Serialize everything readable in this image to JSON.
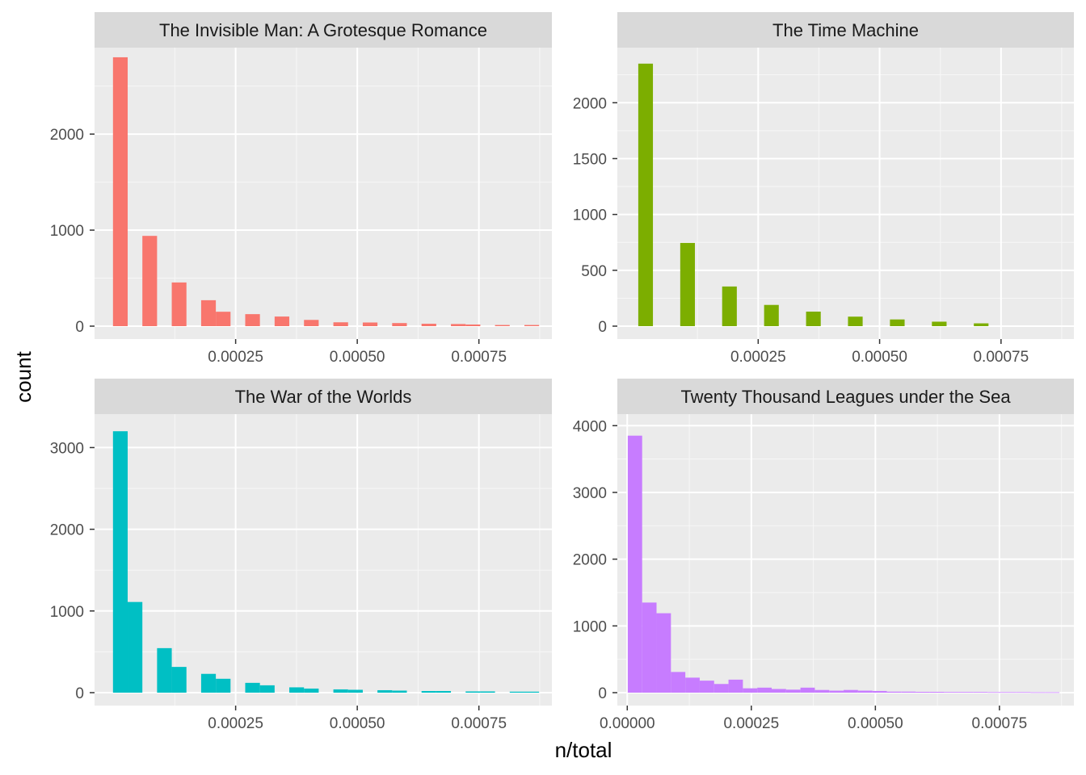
{
  "chart_data": {
    "type": "bar",
    "xlabel": "n/total",
    "ylabel": "count",
    "grid": true,
    "legend": "none",
    "panels": [
      {
        "title": "The Invisible Man: A Grotesque Romance",
        "color": "#F8766D",
        "xlim": [
          -4e-05,
          0.0009
        ],
        "ylim": [
          0,
          2850
        ],
        "xticks": [
          "0.00025",
          "0.00050",
          "0.00075"
        ],
        "xtick_values": [
          0.00025,
          0.0005,
          0.00075
        ],
        "yticks": [
          "0",
          "1000",
          "2000"
        ],
        "ytick_values": [
          0,
          1000,
          2000
        ],
        "bin_width": 3.02e-05,
        "x": [
          1.3e-05,
          7.34e-05,
          0.0001338,
          0.0001942,
          0.0002244,
          0.0002848,
          0.0003452,
          0.0004056,
          0.000466,
          0.0005264,
          0.0005868,
          0.0006472,
          0.0007076,
          0.0007378,
          0.0007982,
          0.0008586
        ],
        "values": [
          2800,
          940,
          455,
          270,
          150,
          125,
          100,
          65,
          40,
          38,
          32,
          25,
          22,
          17,
          12,
          12
        ]
      },
      {
        "title": "The Time Machine",
        "color": "#7CAE00",
        "xlim": [
          -4e-05,
          0.0009
        ],
        "ylim": [
          0,
          2450
        ],
        "xticks": [
          "0.00025",
          "0.00050",
          "0.00075"
        ],
        "xtick_values": [
          0.00025,
          0.0005,
          0.00075
        ],
        "yticks": [
          "0",
          "500",
          "1000",
          "1500",
          "2000"
        ],
        "ytick_values": [
          0,
          500,
          1000,
          1500,
          2000
        ],
        "bin_width": 3.02e-05,
        "x": [
          1.82e-05,
          0.0001046,
          0.0001909,
          0.0002773,
          0.0003637,
          0.00045,
          0.0005364,
          0.0006228,
          0.0007091
        ],
        "values": [
          2350,
          745,
          355,
          190,
          130,
          85,
          60,
          40,
          25
        ]
      },
      {
        "title": "The War of the Worlds",
        "color": "#00BFC4",
        "xlim": [
          -4e-05,
          0.0009
        ],
        "ylim": [
          0,
          3350
        ],
        "xticks": [
          "0.00025",
          "0.00050",
          "0.00075"
        ],
        "xtick_values": [
          0.00025,
          0.0005,
          0.00075
        ],
        "yticks": [
          "0",
          "1000",
          "2000",
          "3000"
        ],
        "ytick_values": [
          0,
          1000,
          2000,
          3000
        ],
        "bin_width": 3.02e-05,
        "x": [
          1.3e-05,
          4.32e-05,
          0.0001036,
          0.0001338,
          0.0001942,
          0.0002244,
          0.0002848,
          0.000315,
          0.0003754,
          0.0004056,
          0.000466,
          0.0004962,
          0.0005566,
          0.0005868,
          0.0006472,
          0.0006774,
          0.0007378,
          0.000768,
          0.0008284,
          0.0008586
        ],
        "values": [
          3200,
          1110,
          545,
          315,
          230,
          170,
          120,
          90,
          65,
          50,
          40,
          35,
          30,
          25,
          20,
          20,
          15,
          15,
          12,
          12
        ]
      },
      {
        "title": "Twenty Thousand Leagues under the Sea",
        "color": "#C77CFF",
        "xlim": [
          -2e-05,
          0.0009
        ],
        "ylim": [
          0,
          4100
        ],
        "xticks": [
          "0.00000",
          "0.00025",
          "0.00050",
          "0.00075"
        ],
        "xtick_values": [
          0,
          0.00025,
          0.0005,
          0.00075
        ],
        "yticks": [
          "0",
          "1000",
          "2000",
          "3000",
          "4000"
        ],
        "ytick_values": [
          0,
          1000,
          2000,
          3000,
          4000
        ],
        "bin_width": 2.9e-05,
        "x": [
          1.55e-05,
          4.45e-05,
          7.35e-05,
          0.0001025,
          0.0001315,
          0.0001605,
          0.0001895,
          0.0002185,
          0.0002475,
          0.0002765,
          0.0003055,
          0.0003345,
          0.0003635,
          0.0003925,
          0.0004215,
          0.0004505,
          0.0004795,
          0.0005085,
          0.0005375,
          0.0005665,
          0.0005955,
          0.0006245,
          0.0006535,
          0.0006825,
          0.0007115,
          0.0007405,
          0.0007695,
          0.0007985,
          0.0008275,
          0.0008565
        ],
        "values": [
          3850,
          1350,
          1190,
          310,
          225,
          180,
          130,
          195,
          65,
          75,
          55,
          45,
          75,
          40,
          30,
          40,
          30,
          25,
          15,
          15,
          12,
          12,
          10,
          10,
          10,
          8,
          8,
          8,
          6,
          6
        ]
      }
    ]
  }
}
